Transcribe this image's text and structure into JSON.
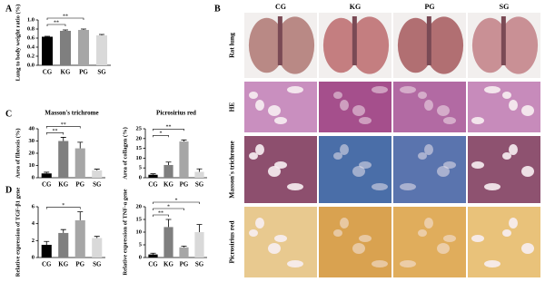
{
  "chart_data": [
    {
      "type": "bar",
      "panel": "A",
      "y_label": "Lung to body weight ratio (%)",
      "categories": [
        "CG",
        "KG",
        "PG",
        "SG"
      ],
      "values": [
        0.63,
        0.76,
        0.78,
        0.66
      ],
      "errors": [
        0.01,
        0.02,
        0.02,
        0.02
      ],
      "colors": [
        "#000000",
        "#7f7f7f",
        "#a6a6a6",
        "#d9d9d9"
      ],
      "ylim": [
        0,
        1.0
      ],
      "yticks": [
        {
          "value": 0,
          "label": "0.0"
        },
        {
          "value": 0.2,
          "label": "0.2"
        },
        {
          "value": 0.4,
          "label": "0.4"
        },
        {
          "value": 0.6,
          "label": "0.6"
        },
        {
          "value": 0.8,
          "label": "0.8"
        },
        {
          "value": 1.0,
          "label": "1.0"
        }
      ],
      "annotations": [
        {
          "text": "**",
          "between": [
            "CG",
            "KG"
          ]
        },
        {
          "text": "**",
          "between": [
            "CG",
            "PG"
          ]
        }
      ]
    },
    {
      "type": "bar",
      "panel": "C",
      "title": "Masson's trichrome",
      "y_label": "Area of fibrosis (%)",
      "categories": [
        "CG",
        "KG",
        "PG",
        "SG"
      ],
      "values": [
        3.5,
        30,
        24,
        6
      ],
      "errors": [
        1,
        3,
        5,
        1
      ],
      "colors": [
        "#000000",
        "#7f7f7f",
        "#a6a6a6",
        "#d9d9d9"
      ],
      "ylim": [
        0,
        40
      ],
      "yticks": [
        0,
        10,
        20,
        30,
        40
      ],
      "annotations": [
        {
          "text": "**",
          "between": [
            "CG",
            "KG"
          ]
        },
        {
          "text": "**",
          "between": [
            "CG",
            "PG"
          ]
        }
      ]
    },
    {
      "type": "bar",
      "title": "Picrosirius red",
      "y_label": "Area of collagen (%)",
      "categories": [
        "CG",
        "KG",
        "PG",
        "SG"
      ],
      "values": [
        1.5,
        6.5,
        18.5,
        3
      ],
      "errors": [
        0.5,
        1.5,
        0.8,
        1.5
      ],
      "colors": [
        "#000000",
        "#7f7f7f",
        "#a6a6a6",
        "#d9d9d9"
      ],
      "ylim": [
        0,
        25
      ],
      "yticks": [
        0,
        5,
        10,
        15,
        20,
        25
      ],
      "annotations": [
        {
          "text": "*",
          "between": [
            "CG",
            "KG"
          ]
        },
        {
          "text": "**",
          "between": [
            "CG",
            "PG"
          ]
        }
      ]
    },
    {
      "type": "bar",
      "panel": "D",
      "y_label": "Relative expression of TGF-β1 gene",
      "categories": [
        "CG",
        "KG",
        "PG",
        "SG"
      ],
      "values": [
        1.5,
        2.9,
        4.4,
        2.3
      ],
      "errors": [
        0.4,
        0.4,
        1,
        0.2
      ],
      "colors": [
        "#000000",
        "#7f7f7f",
        "#a6a6a6",
        "#d9d9d9"
      ],
      "ylim": [
        0,
        6
      ],
      "yticks": [
        0,
        2,
        4,
        6
      ],
      "annotations": [
        {
          "text": "*",
          "between": [
            "CG",
            "PG"
          ]
        }
      ]
    },
    {
      "type": "bar",
      "y_label": "Relative expression of TNF-α gene",
      "categories": [
        "CG",
        "KG",
        "PG",
        "SG"
      ],
      "values": [
        1.2,
        12,
        4,
        10
      ],
      "errors": [
        0.5,
        3,
        0.5,
        3
      ],
      "colors": [
        "#000000",
        "#7f7f7f",
        "#a6a6a6",
        "#d9d9d9"
      ],
      "ylim": [
        0,
        20
      ],
      "yticks": [
        0,
        5,
        10,
        15,
        20
      ],
      "annotations": [
        {
          "text": "**",
          "between": [
            "CG",
            "KG"
          ]
        },
        {
          "text": "*",
          "between": [
            "CG",
            "PG"
          ]
        },
        {
          "text": "*",
          "between": [
            "CG",
            "SG"
          ]
        }
      ]
    }
  ],
  "panel_b": {
    "label": "B",
    "columns": [
      "CG",
      "KG",
      "PG",
      "SG"
    ],
    "rows": [
      "Rat lung",
      "HE",
      "Masson's trichrome",
      "Picrosirius red"
    ]
  }
}
